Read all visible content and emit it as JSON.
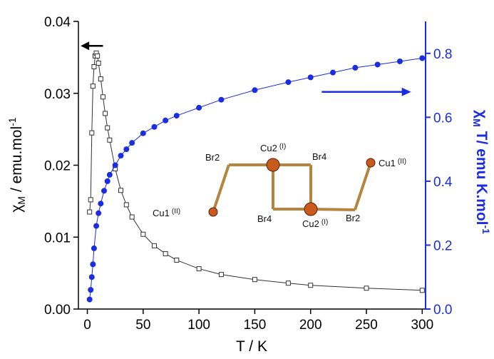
{
  "chart_data": {
    "type": "scatter",
    "xlabel": "T / K",
    "ylabel_left": {
      "main": "χ",
      "sub": "M",
      "rest": " / emu.mol",
      "sup": "-1"
    },
    "ylabel_right": {
      "main": "χ",
      "sub": "M",
      "rest": " T/ emu K.mol",
      "sup": "-1"
    },
    "xlim": [
      -8,
      303
    ],
    "ylim_left": [
      0,
      0.04
    ],
    "ylim_right": [
      0,
      0.9
    ],
    "x_ticks": [
      0,
      50,
      100,
      150,
      200,
      250,
      300
    ],
    "x_tick_labels": [
      "0",
      "50",
      "100",
      "150",
      "200",
      "250",
      "300"
    ],
    "y_left_ticks": [
      0,
      0.01,
      0.02,
      0.03,
      0.04
    ],
    "y_left_tick_labels": [
      "0.00",
      "0.01",
      "0.02",
      "0.03",
      "0.04"
    ],
    "y_right_ticks": [
      0,
      0.2,
      0.4,
      0.6,
      0.8
    ],
    "y_right_tick_labels": [
      "0.0",
      "0.2",
      "0.4",
      "0.6",
      "0.8"
    ],
    "grid": false,
    "colors": {
      "chiM": "#333333",
      "chiMT": "#1a2de0",
      "right_axis": "#1a2de0",
      "atom_cu": "#c85a1e",
      "bond": "#b5853f"
    },
    "series": [
      {
        "axis": "left",
        "marker": "open-square",
        "x": [
          2,
          3,
          4,
          5,
          6,
          7,
          8,
          9,
          10,
          12,
          14,
          16,
          18,
          20,
          25,
          30,
          35,
          40,
          50,
          60,
          70,
          80,
          100,
          120,
          150,
          180,
          200,
          250,
          300
        ],
        "y": [
          0.0135,
          0.0152,
          0.0245,
          0.031,
          0.0337,
          0.0352,
          0.0356,
          0.0352,
          0.0342,
          0.032,
          0.0295,
          0.0272,
          0.0252,
          0.0235,
          0.0195,
          0.0165,
          0.0145,
          0.0128,
          0.0104,
          0.0088,
          0.0077,
          0.0068,
          0.0056,
          0.0048,
          0.0041,
          0.0036,
          0.0033,
          0.0029,
          0.0026
        ]
      },
      {
        "axis": "right",
        "marker": "filled-circle",
        "x": [
          2,
          3,
          4,
          5,
          6,
          8,
          10,
          12,
          15,
          18,
          20,
          25,
          30,
          35,
          40,
          50,
          60,
          70,
          80,
          100,
          120,
          150,
          180,
          200,
          220,
          240,
          260,
          280,
          300
        ],
        "y": [
          0.03,
          0.06,
          0.1,
          0.14,
          0.19,
          0.26,
          0.3,
          0.33,
          0.37,
          0.4,
          0.42,
          0.45,
          0.48,
          0.5,
          0.52,
          0.55,
          0.57,
          0.59,
          0.605,
          0.63,
          0.655,
          0.685,
          0.71,
          0.725,
          0.74,
          0.755,
          0.765,
          0.775,
          0.785
        ]
      }
    ],
    "annotations": {
      "arrow_left": {
        "x1": 14,
        "x2": -6,
        "y_left": 0.0366
      },
      "arrow_right": {
        "x1": 210,
        "x2": 290,
        "y_left": 0.0302
      }
    },
    "inset_labels": [
      {
        "id": "br2-left",
        "text": "Br2"
      },
      {
        "id": "cu2-top",
        "text": "Cu2",
        "sup": "(I)"
      },
      {
        "id": "br4-right",
        "text": "Br4"
      },
      {
        "id": "cu1-right",
        "text": "Cu1",
        "sup": "(II)"
      },
      {
        "id": "cu1-left",
        "text": "Cu1",
        "sup": "(II)"
      },
      {
        "id": "br4-left",
        "text": "Br4"
      },
      {
        "id": "cu2-bottom",
        "text": "Cu2",
        "sup": "(I)"
      },
      {
        "id": "br2-right",
        "text": "Br2"
      }
    ]
  }
}
